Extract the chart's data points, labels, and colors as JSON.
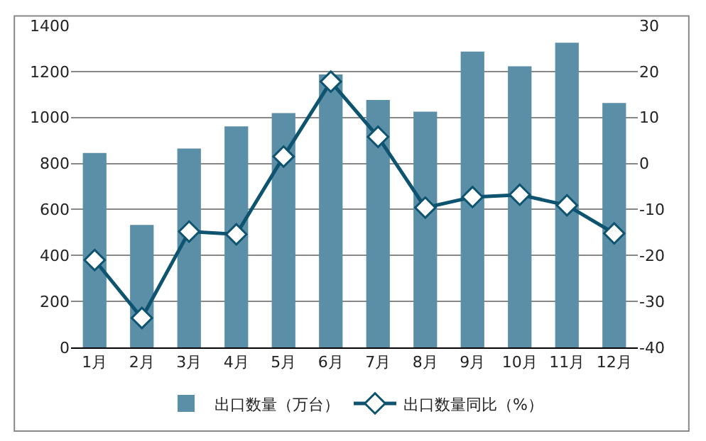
{
  "chart_data": {
    "type": "bar",
    "categories": [
      "1月",
      "2月",
      "3月",
      "4月",
      "5月",
      "6月",
      "7月",
      "8月",
      "9月",
      "10月",
      "11月",
      "12月"
    ],
    "series": [
      {
        "name": "出口数量（万台）",
        "color": "#5b8fa8",
        "values": [
          846,
          533,
          865,
          961,
          1019,
          1187,
          1076,
          1025,
          1287,
          1223,
          1325,
          1063
        ]
      },
      {
        "name": "出口数量同比（%）",
        "type": "line",
        "axis": "y2",
        "color": "#0e5470",
        "marker": "diamond",
        "values": [
          -21.0,
          -33.6,
          -14.8,
          -15.4,
          1.5,
          17.8,
          5.8,
          -9.6,
          -7.3,
          -6.8,
          -9.1,
          -15.2
        ]
      }
    ],
    "ylim": [
      0,
      1400
    ],
    "yticks": [
      0,
      200,
      400,
      600,
      800,
      1000,
      1200,
      1400
    ],
    "y2lim": [
      -40,
      30
    ],
    "y2ticks": [
      -40,
      -30,
      -20,
      -10,
      0,
      10,
      20,
      30
    ],
    "grid": "y",
    "legend": "bottom"
  }
}
